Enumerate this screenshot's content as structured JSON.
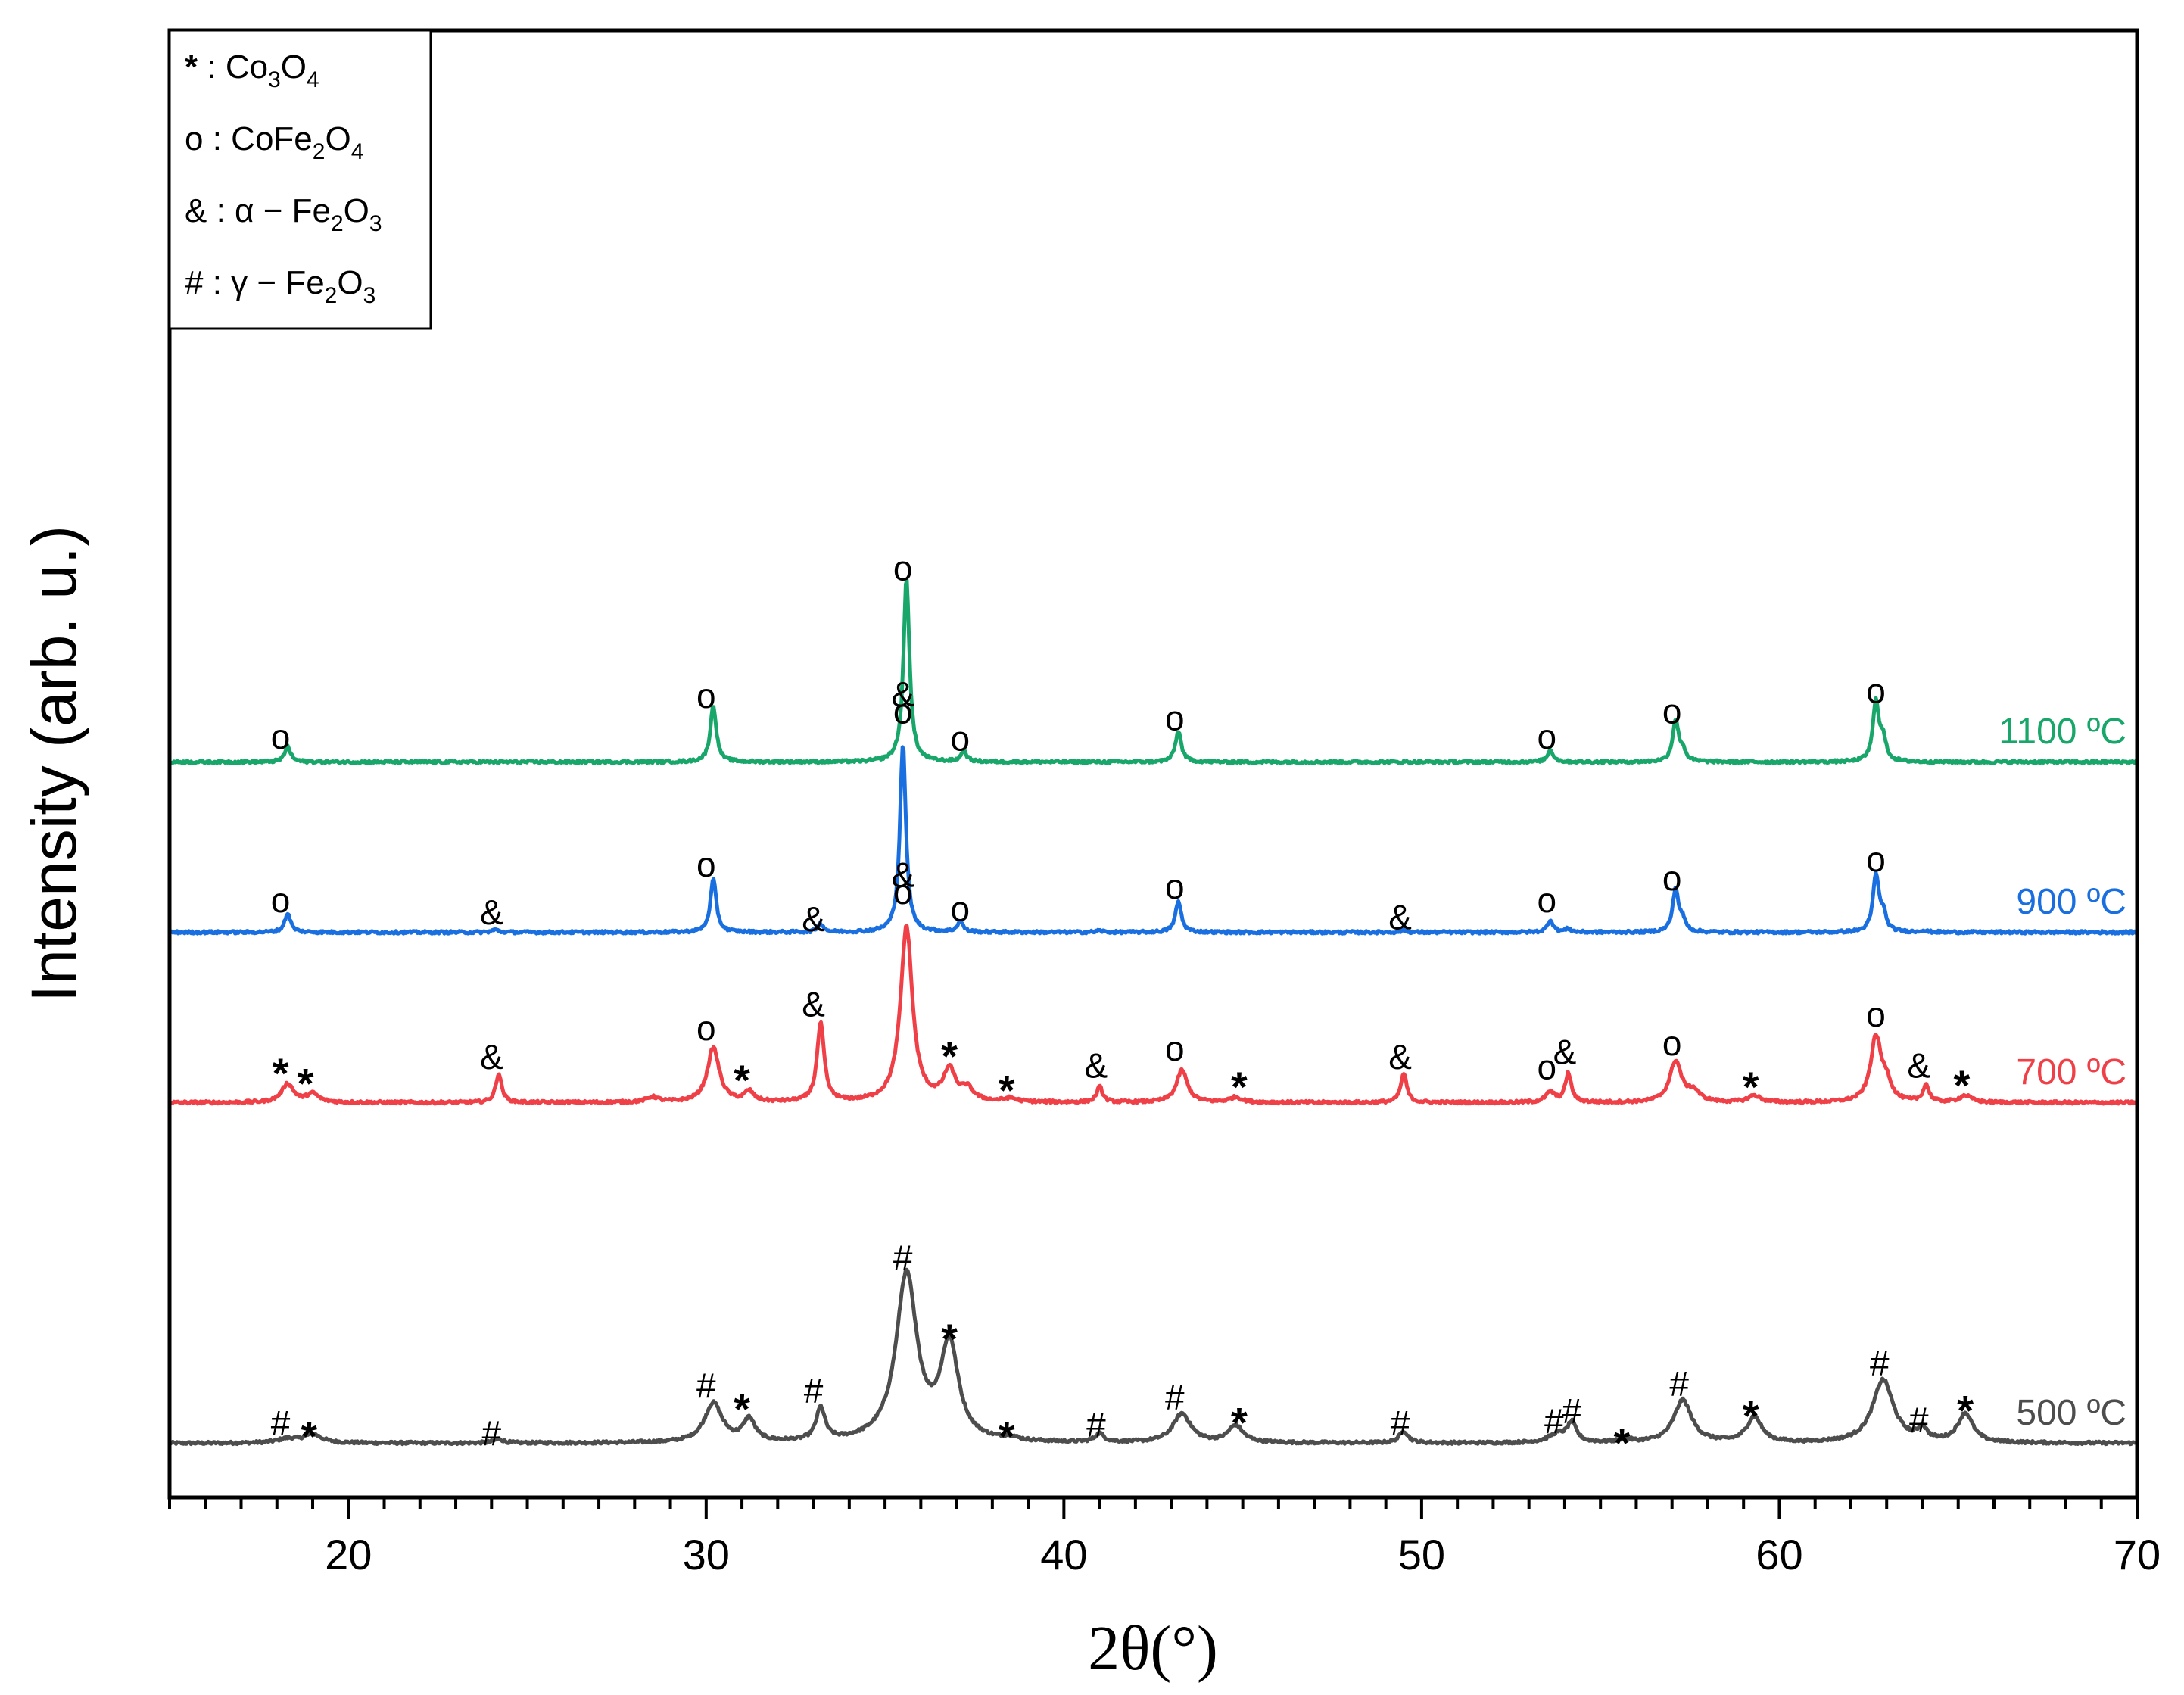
{
  "chart_data": {
    "type": "line",
    "title": "",
    "xlabel": "2θ(°)",
    "ylabel": "Intensity (arb. u.)",
    "xlim": [
      15,
      70
    ],
    "x_major_ticks": [
      20,
      30,
      40,
      50,
      60,
      70
    ],
    "x_tick_labels": [
      "20",
      "30",
      "40",
      "50",
      "60",
      "70"
    ],
    "x_minor_step": 1,
    "y_tick_labels": false,
    "legend_position": "top-left",
    "legend": [
      {
        "symbol": "*",
        "sep": " : ",
        "parts": [
          [
            "Co",
            ""
          ],
          [
            "3",
            "sub"
          ],
          [
            "O",
            ""
          ],
          [
            "4",
            "sub"
          ]
        ]
      },
      {
        "symbol": "o",
        "sep": " : ",
        "parts": [
          [
            "CoFe",
            ""
          ],
          [
            "2",
            "sub"
          ],
          [
            "O",
            ""
          ],
          [
            "4",
            "sub"
          ]
        ]
      },
      {
        "symbol": "&",
        "sep": " : ",
        "parts": [
          [
            "α − Fe",
            ""
          ],
          [
            "2",
            "sub"
          ],
          [
            "O",
            ""
          ],
          [
            "3",
            "sub"
          ]
        ]
      },
      {
        "symbol": "#",
        "sep": " : ",
        "parts": [
          [
            "γ − Fe",
            ""
          ],
          [
            "2",
            "sub"
          ],
          [
            "O",
            ""
          ],
          [
            "3",
            "sub"
          ]
        ]
      }
    ],
    "series": [
      {
        "name": "500 ºC",
        "color": "#4d4d4d",
        "offset": 0,
        "baseline": 0.3,
        "peaks": [
          [
            18.3,
            0.12,
            0.35
          ],
          [
            19.0,
            0.25,
            0.3
          ],
          [
            24.2,
            0.12,
            0.15
          ],
          [
            30.2,
            1.15,
            0.3
          ],
          [
            31.2,
            0.65,
            0.2
          ],
          [
            33.2,
            0.95,
            0.15
          ],
          [
            35.6,
            4.9,
            0.35
          ],
          [
            36.8,
            2.8,
            0.3
          ],
          [
            38.5,
            0.1,
            0.2
          ],
          [
            41.0,
            0.25,
            0.15
          ],
          [
            43.3,
            0.85,
            0.3
          ],
          [
            44.8,
            0.5,
            0.25
          ],
          [
            49.5,
            0.35,
            0.15
          ],
          [
            53.8,
            0.25,
            0.3
          ],
          [
            54.2,
            0.55,
            0.15
          ],
          [
            55.7,
            0.1,
            0.2
          ],
          [
            57.3,
            1.25,
            0.3
          ],
          [
            59.3,
            0.75,
            0.25
          ],
          [
            62.9,
            1.85,
            0.35
          ],
          [
            64.0,
            0.35,
            0.15
          ],
          [
            65.2,
            0.85,
            0.25
          ]
        ],
        "markers": [
          [
            "#",
            18.1,
            0.85
          ],
          [
            "*",
            18.9,
            0.75
          ],
          [
            "#",
            24.0,
            0.55
          ],
          [
            "#",
            30.0,
            1.95
          ],
          [
            "*",
            31.0,
            1.55
          ],
          [
            "#",
            33.0,
            1.8
          ],
          [
            "#",
            35.5,
            5.7
          ],
          [
            "*",
            36.8,
            3.6
          ],
          [
            "*",
            38.4,
            0.75
          ],
          [
            "#",
            40.9,
            0.8
          ],
          [
            "#",
            43.1,
            1.6
          ],
          [
            "*",
            44.9,
            1.15
          ],
          [
            "#",
            49.4,
            0.85
          ],
          [
            "#",
            53.7,
            0.9
          ],
          [
            "#",
            54.2,
            1.2
          ],
          [
            "*",
            55.6,
            0.55
          ],
          [
            "#",
            57.2,
            2.0
          ],
          [
            "*",
            59.2,
            1.35
          ],
          [
            "#",
            62.8,
            2.6
          ],
          [
            "#",
            63.9,
            0.95
          ],
          [
            "*",
            65.2,
            1.5
          ]
        ]
      },
      {
        "name": "700 ºC",
        "color": "#ef4048",
        "offset": 10,
        "baseline": 0.3,
        "peaks": [
          [
            18.3,
            0.55,
            0.2
          ],
          [
            19.0,
            0.25,
            0.2
          ],
          [
            24.2,
            0.85,
            0.1
          ],
          [
            28.5,
            0.15,
            0.2
          ],
          [
            30.2,
            1.6,
            0.2
          ],
          [
            31.2,
            0.3,
            0.15
          ],
          [
            33.2,
            2.3,
            0.12
          ],
          [
            35.6,
            5.15,
            0.2
          ],
          [
            36.8,
            0.9,
            0.2
          ],
          [
            37.3,
            0.35,
            0.2
          ],
          [
            38.5,
            0.1,
            0.2
          ],
          [
            41.0,
            0.45,
            0.1
          ],
          [
            43.3,
            0.95,
            0.18
          ],
          [
            44.8,
            0.15,
            0.2
          ],
          [
            49.5,
            0.85,
            0.1
          ],
          [
            53.6,
            0.3,
            0.15
          ],
          [
            54.1,
            0.85,
            0.1
          ],
          [
            57.1,
            1.2,
            0.2
          ],
          [
            57.6,
            0.3,
            0.2
          ],
          [
            59.3,
            0.2,
            0.2
          ],
          [
            62.7,
            1.9,
            0.18
          ],
          [
            63.0,
            0.5,
            0.15
          ],
          [
            64.1,
            0.5,
            0.1
          ],
          [
            65.2,
            0.2,
            0.2
          ]
        ],
        "markers": [
          [
            "*",
            18.1,
            1.4
          ],
          [
            "*",
            18.8,
            1.1
          ],
          [
            "&",
            24.0,
            1.6
          ],
          [
            "o",
            30.0,
            2.45
          ],
          [
            "*",
            31.0,
            1.2
          ],
          [
            "&",
            33.0,
            3.15
          ],
          [
            "&",
            35.5,
            6.95
          ],
          [
            "o",
            35.5,
            6.45
          ],
          [
            "*",
            36.8,
            1.9
          ],
          [
            "*",
            38.4,
            0.9
          ],
          [
            "&",
            40.9,
            1.35
          ],
          [
            "o",
            43.1,
            1.85
          ],
          [
            "*",
            44.9,
            1.0
          ],
          [
            "&",
            49.4,
            1.6
          ],
          [
            "o",
            53.5,
            1.3
          ],
          [
            "&",
            54.0,
            1.75
          ],
          [
            "o",
            57.0,
            2.0
          ],
          [
            "*",
            59.2,
            1.0
          ],
          [
            "o",
            62.7,
            2.85
          ],
          [
            "&",
            63.9,
            1.35
          ],
          [
            "*",
            65.1,
            1.05
          ]
        ]
      },
      {
        "name": "900 ºC",
        "color": "#1a6fe0",
        "offset": 15,
        "baseline": 0.3,
        "peaks": [
          [
            18.3,
            0.55,
            0.1
          ],
          [
            24.1,
            0.08,
            0.1
          ],
          [
            30.2,
            1.55,
            0.1
          ],
          [
            33.2,
            0.25,
            0.1
          ],
          [
            35.5,
            5.5,
            0.1
          ],
          [
            37.1,
            0.3,
            0.1
          ],
          [
            41.0,
            0.05,
            0.1
          ],
          [
            43.2,
            0.9,
            0.1
          ],
          [
            49.5,
            0.06,
            0.1
          ],
          [
            53.6,
            0.35,
            0.1
          ],
          [
            54.1,
            0.1,
            0.1
          ],
          [
            57.1,
            1.25,
            0.1
          ],
          [
            57.3,
            0.3,
            0.1
          ],
          [
            62.7,
            1.65,
            0.1
          ],
          [
            62.9,
            0.5,
            0.1
          ],
          [
            64.0,
            0.05,
            0.1
          ]
        ],
        "markers": [
          [
            "o",
            18.1,
            1.2
          ],
          [
            "&",
            24.0,
            0.85
          ],
          [
            "o",
            30.0,
            2.25
          ],
          [
            "&",
            33.0,
            0.65
          ],
          [
            "&",
            35.5,
            7.25
          ],
          [
            "o",
            35.5,
            6.75
          ],
          [
            "o",
            37.1,
            0.95
          ],
          [
            "o",
            43.1,
            1.6
          ],
          [
            "&",
            49.4,
            0.7
          ],
          [
            "o",
            53.5,
            1.2
          ],
          [
            "o",
            57.0,
            1.85
          ],
          [
            "o",
            62.7,
            2.4
          ]
        ]
      },
      {
        "name": "1100 ºC",
        "color": "#18a66a",
        "offset": 20,
        "baseline": 0.3,
        "peaks": [
          [
            18.3,
            0.45,
            0.1
          ],
          [
            30.2,
            1.65,
            0.1
          ],
          [
            35.6,
            5.4,
            0.1
          ],
          [
            37.2,
            0.3,
            0.1
          ],
          [
            43.2,
            0.9,
            0.1
          ],
          [
            53.6,
            0.35,
            0.1
          ],
          [
            57.1,
            1.2,
            0.1
          ],
          [
            57.3,
            0.3,
            0.1
          ],
          [
            62.7,
            1.75,
            0.1
          ],
          [
            62.9,
            0.6,
            0.1
          ]
        ],
        "markers": [
          [
            "o",
            18.1,
            1.0
          ],
          [
            "o",
            30.0,
            2.2
          ],
          [
            "o",
            35.5,
            5.95
          ],
          [
            "o",
            37.1,
            0.95
          ],
          [
            "o",
            43.1,
            1.55
          ],
          [
            "o",
            53.5,
            1.0
          ],
          [
            "o",
            57.0,
            1.75
          ],
          [
            "o",
            62.7,
            2.35
          ]
        ]
      }
    ]
  }
}
